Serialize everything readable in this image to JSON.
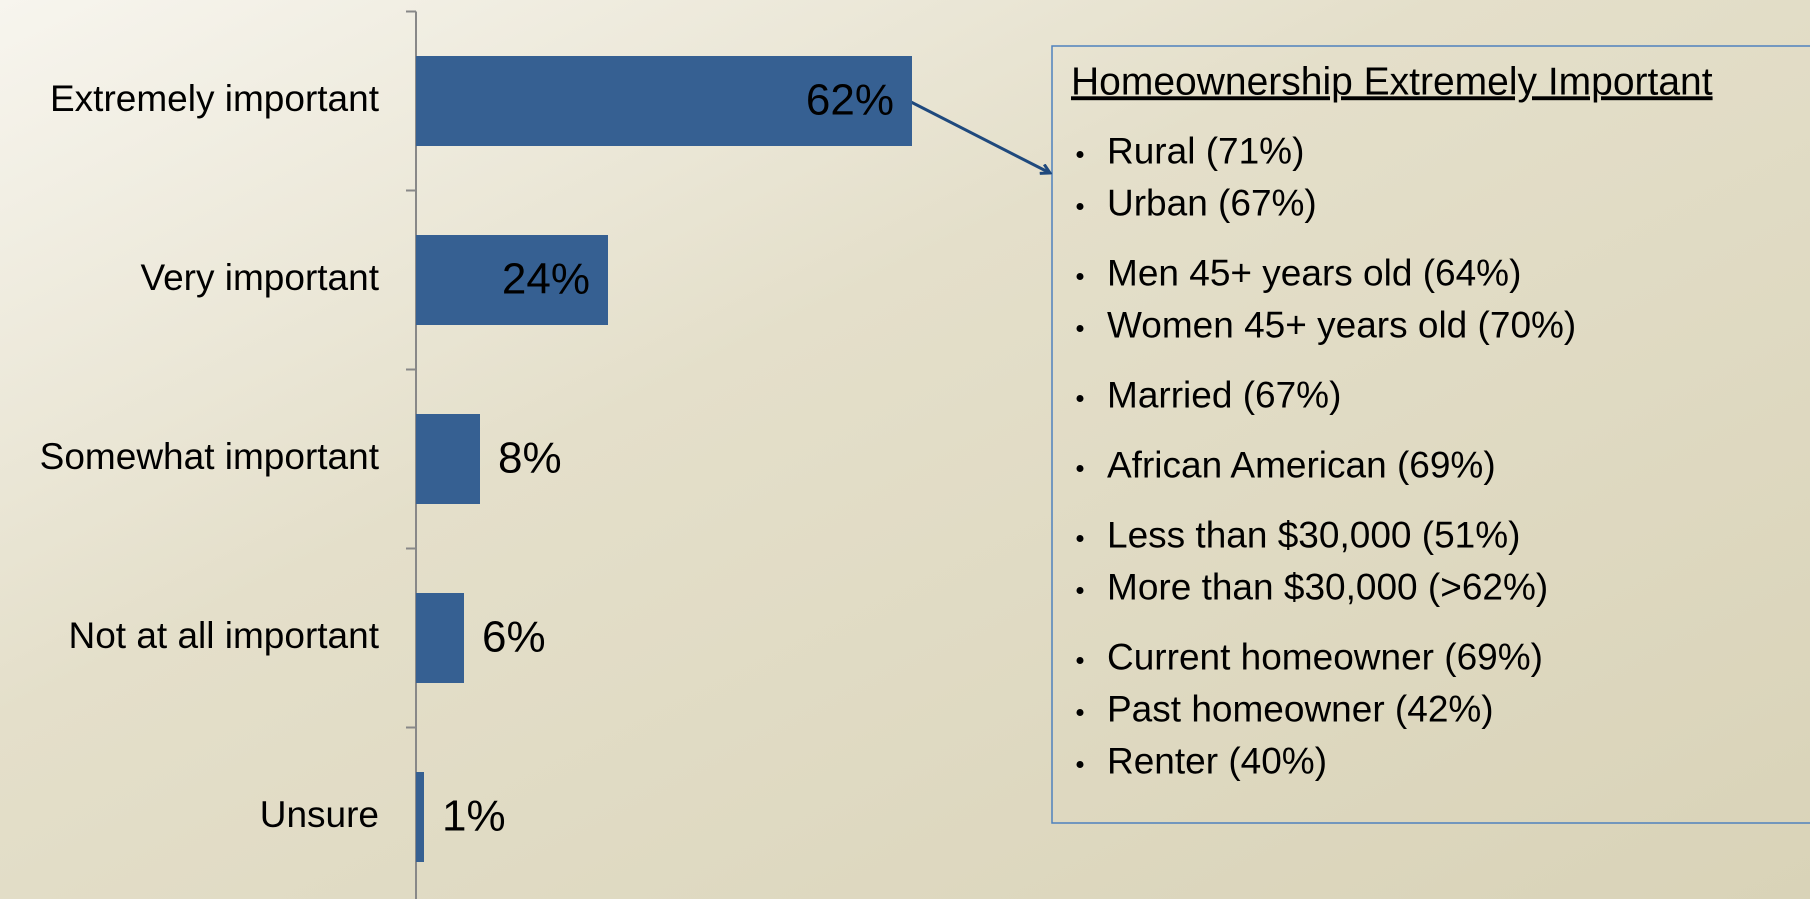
{
  "chart_data": {
    "type": "bar",
    "orientation": "horizontal",
    "categories": [
      "Extremely important",
      "Very important",
      "Somewhat important",
      "Not at all important",
      "Unsure"
    ],
    "values": [
      62,
      24,
      8,
      6,
      1
    ],
    "value_labels": [
      "62%",
      "24%",
      "8%",
      "6%",
      "1%"
    ],
    "color": "#366092",
    "xlim": [
      0,
      100
    ]
  },
  "annotation": {
    "title": "Homeownership Extremely Important",
    "groups": [
      [
        "Rural (71%)",
        "Urban (67%)"
      ],
      [
        "Men 45+ years old (64%)",
        "Women 45+ years old (70%)"
      ],
      [
        "Married (67%)"
      ],
      [
        "African American (69%)"
      ],
      [
        "Less than $30,000 (51%)",
        "More than $30,000 (>62%)"
      ],
      [
        "Current homeowner (69%)",
        "Past homeowner (42%)",
        "Renter (40%)"
      ]
    ]
  }
}
